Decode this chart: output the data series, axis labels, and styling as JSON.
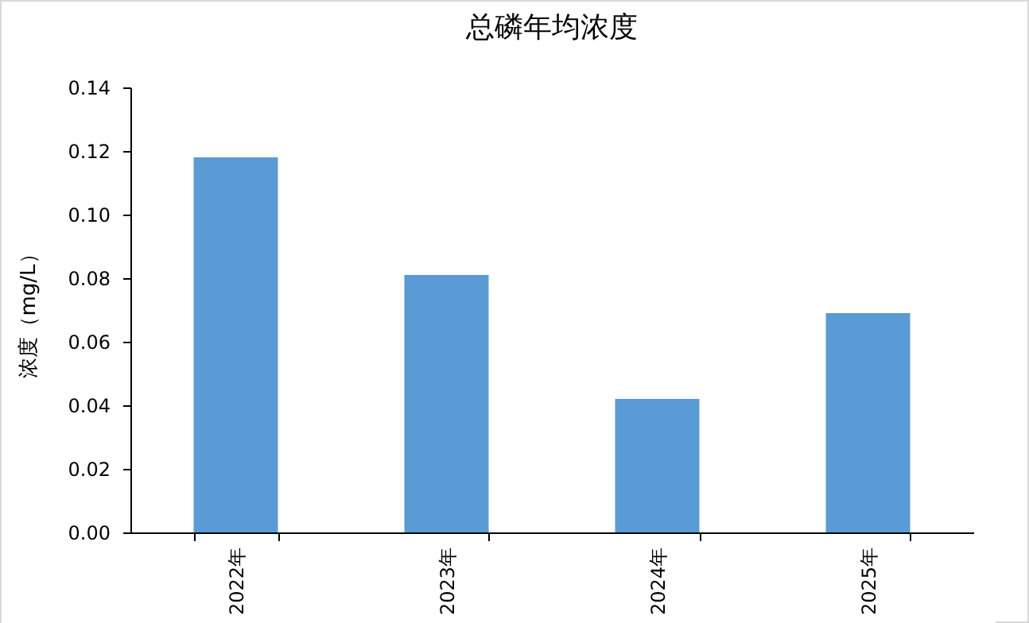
{
  "chart_data": {
    "type": "bar",
    "title": "总磷年均浓度",
    "ylabel": "浓度（mg/L）",
    "categories": [
      "2022年",
      "2023年",
      "2024年",
      "2025年"
    ],
    "series": [
      {
        "color": "#5b9bd5",
        "values": [
          0.118,
          0.081,
          0.042,
          0.069
        ]
      }
    ],
    "ylim": [
      0,
      0.14
    ],
    "yticks": [
      {
        "value": 0,
        "label": "0.00"
      },
      {
        "value": 0.02,
        "label": "0.02"
      },
      {
        "value": 0.04,
        "label": "0.04"
      },
      {
        "value": 0.06,
        "label": "0.06"
      },
      {
        "value": 0.08,
        "label": "0.08"
      },
      {
        "value": 0.1,
        "label": "0.10"
      },
      {
        "value": 0.12,
        "label": "0.12"
      },
      {
        "value": 0.14,
        "label": "0.14"
      }
    ],
    "grid": false,
    "legend": false
  }
}
